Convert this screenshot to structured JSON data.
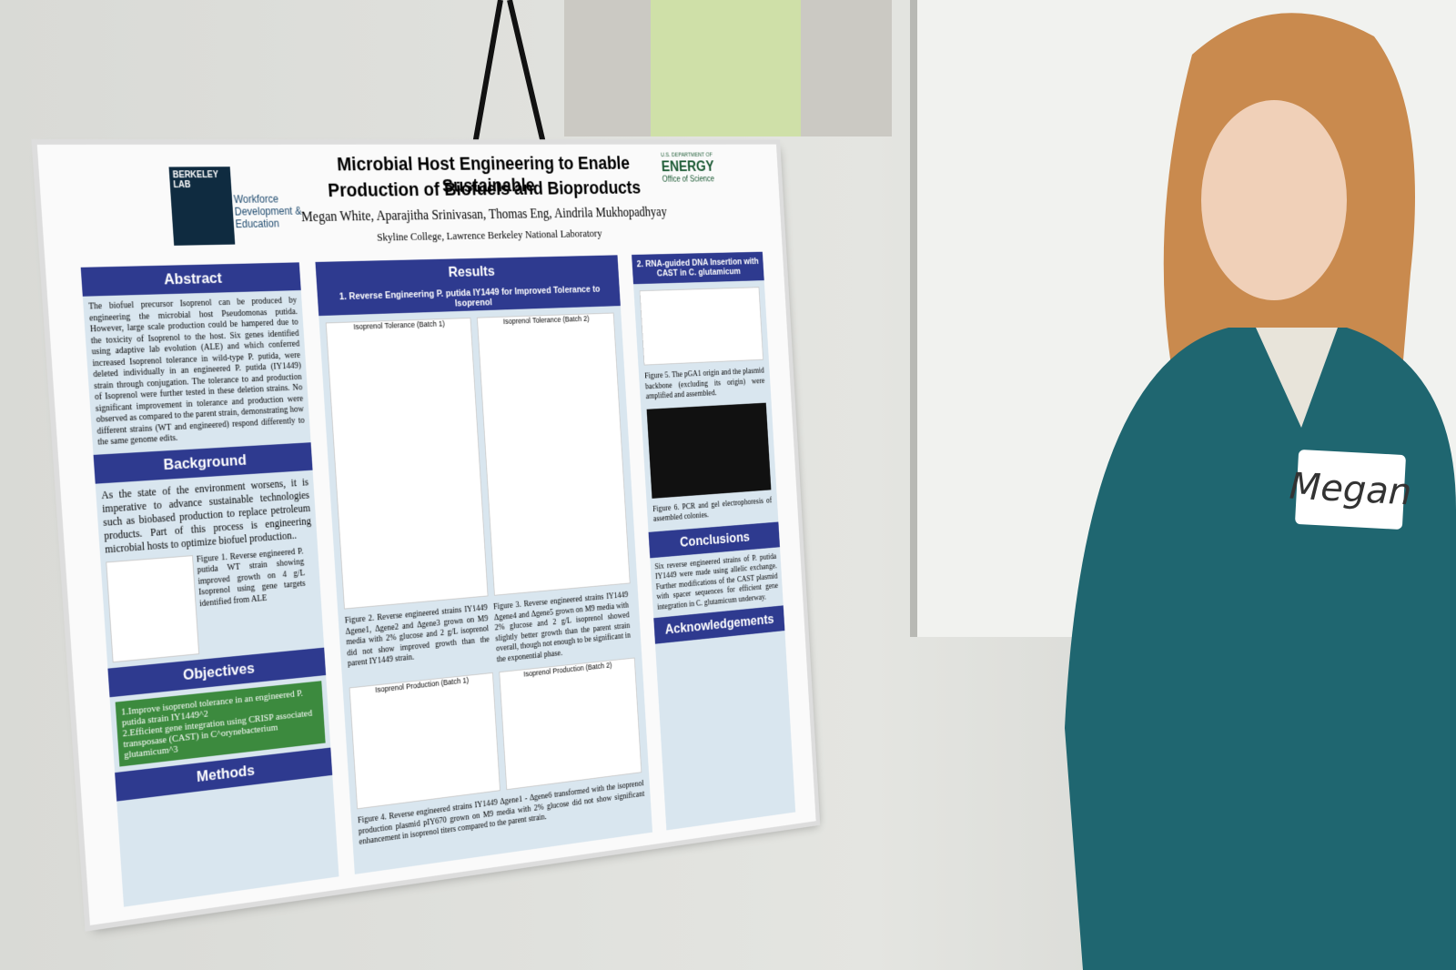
{
  "header": {
    "title_line1": "Microbial Host Engineering to Enable Sustainable",
    "title_line2": "Production of Biofuels and Bioproducts",
    "authors": "Megan White, Aparajitha Srinivasan, Thomas Eng, Aindrila Mukhopadhyay",
    "affiliation": "Skyline College, Lawrence Berkeley National Laboratory"
  },
  "logos": {
    "lab": "BERKELEY LAB",
    "workforce": "Workforce Development & Education",
    "doe_top": "U.S. DEPARTMENT OF",
    "doe": "ENERGY",
    "doe_office": "Office of Science"
  },
  "left": {
    "abstract_heading": "Abstract",
    "abstract_text": "The biofuel precursor Isoprenol can be produced by engineering the microbial host Pseudomonas putida. However, large scale production could be hampered due to the toxicity of Isoprenol to the host. Six genes identified using adaptive lab evolution (ALE) and which conferred increased Isoprenol tolerance in wild-type P. putida, were deleted individually in an engineered P. putida (IY1449) strain through conjugation. The tolerance to and production of Isoprenol were further tested in these deletion strains. No significant improvement in tolerance and production were observed as compared to the parent strain, demonstrating how different strains (WT and engineered) respond differently to the same genome edits.",
    "background_heading": "Background",
    "background_text": "As the state of the environment worsens, it is imperative to advance sustainable technologies such as biobased production to replace petroleum products. Part of this process is engineering microbial hosts to optimize biofuel production..",
    "figure1_caption": "Figure 1. Reverse engineered P. putida WT strain showing improved growth on 4 g/L Isoprenol using gene targets identified from ALE",
    "objectives_heading": "Objectives",
    "objectives": [
      "1.Improve isoprenol tolerance in an engineered P. putida strain IY1449^2",
      "2.Efficient gene integration using CRISP associated transposase (CAST) in C^orynebacterium glutamicum^3"
    ],
    "methods_heading": "Methods"
  },
  "middle": {
    "results_heading": "Results",
    "subheading": "1. Reverse Engineering P. putida IY1449 for Improved Tolerance to Isoprenol",
    "plot1_title": "Isoprenol Tolerance (Batch 1)",
    "plot2_title": "Isoprenol Tolerance (Batch 2)",
    "figure2_caption": "Figure 2. Reverse engineered strains IY1449 Δgene1, Δgene2 and Δgene3 grown on M9 media with 2% glucose and 2 g/L isoprenol did not show improved growth than the parent IY1449 strain.",
    "figure3_caption": "Figure 3. Reverse engineered strains IY1449 Δgene4 and Δgene5 grown on M9 media with 2% glucose and 2 g/L isoprenol showed slightly better growth than the parent strain overall, though not enough to be significant in the exponential phase.",
    "bar1_title": "Isoprenol Production (Batch 1)",
    "bar2_title": "Isoprenol Production (Batch 2)",
    "figure4_caption": "Figure 4. Reverse engineered strains IY1449 Δgene1 - Δgene6 transformed with the isoprenol production plasmid pIY670 grown on M9 media with 2% glucose did not show significant enhancement in isoprenol titers compared to the parent strain."
  },
  "right": {
    "heading": "2. RNA-guided DNA Insertion with CAST in C. glutamicum",
    "figure5_caption": "Figure 5. The pGA1 origin and the plasmid backbone (excluding its origin) were amplified and assembled.",
    "figure6_caption": "Figure 6. PCR and gel electrophoresis of assembled colonies.",
    "conclusions_heading": "Conclusions",
    "conclusions_text": "Six reverse engineered strains of P. putida IY1449 were made using allelic exchange. Further modifications of the CAST plasmid with spacer sequences for efficient gene integration in C. glutamicum underway.",
    "ack_heading": "Acknowledgements"
  },
  "name_tag": "Megan"
}
